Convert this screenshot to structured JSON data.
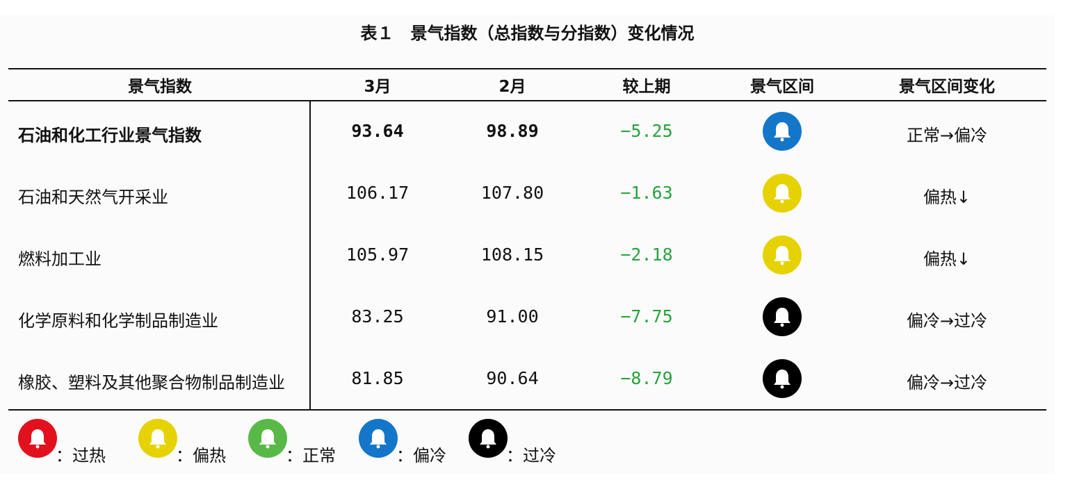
{
  "title": "表１　景气指数（总指数与分指数）变化情况",
  "headers": {
    "index": "景气指数",
    "march": "3月",
    "feb": "2月",
    "change": "较上期",
    "zone": "景气区间",
    "zone_change": "景气区间变化"
  },
  "rows": [
    {
      "name": "石油和化工行业景气指数",
      "march": "93.64",
      "feb": "98.89",
      "change": "−5.25",
      "zone": "偏冷",
      "zone_change": "正常→偏冷"
    },
    {
      "name": "石油和天然气开采业",
      "march": "106.17",
      "feb": "107.80",
      "change": "−1.63",
      "zone": "偏热",
      "zone_change": "偏热↓"
    },
    {
      "name": "燃料加工业",
      "march": "105.97",
      "feb": "108.15",
      "change": "−2.18",
      "zone": "偏热",
      "zone_change": "偏热↓"
    },
    {
      "name": "化学原料和化学制品制造业",
      "march": "83.25",
      "feb": "91.00",
      "change": "−7.75",
      "zone": "过冷",
      "zone_change": "偏冷→过冷"
    },
    {
      "name": "橡胶、塑料及其他聚合物制品制造业",
      "march": "81.85",
      "feb": "90.64",
      "change": "−8.79",
      "zone": "过冷",
      "zone_change": "偏冷→过冷"
    }
  ],
  "legend": [
    {
      "label": "：过热",
      "color": "#e3101e"
    },
    {
      "label": "：偏热",
      "color": "#e6d200"
    },
    {
      "label": "：正常",
      "color": "#58b947"
    },
    {
      "label": "：偏冷",
      "color": "#1476c8"
    },
    {
      "label": "：过冷",
      "color": "#000000"
    }
  ],
  "zone_colors": {
    "过热": "#e3101e",
    "偏热": "#e6d200",
    "正常": "#58b947",
    "偏冷": "#1476c8",
    "过冷": "#000000"
  },
  "change_color": "#27a33c",
  "icon": "bell-icon"
}
